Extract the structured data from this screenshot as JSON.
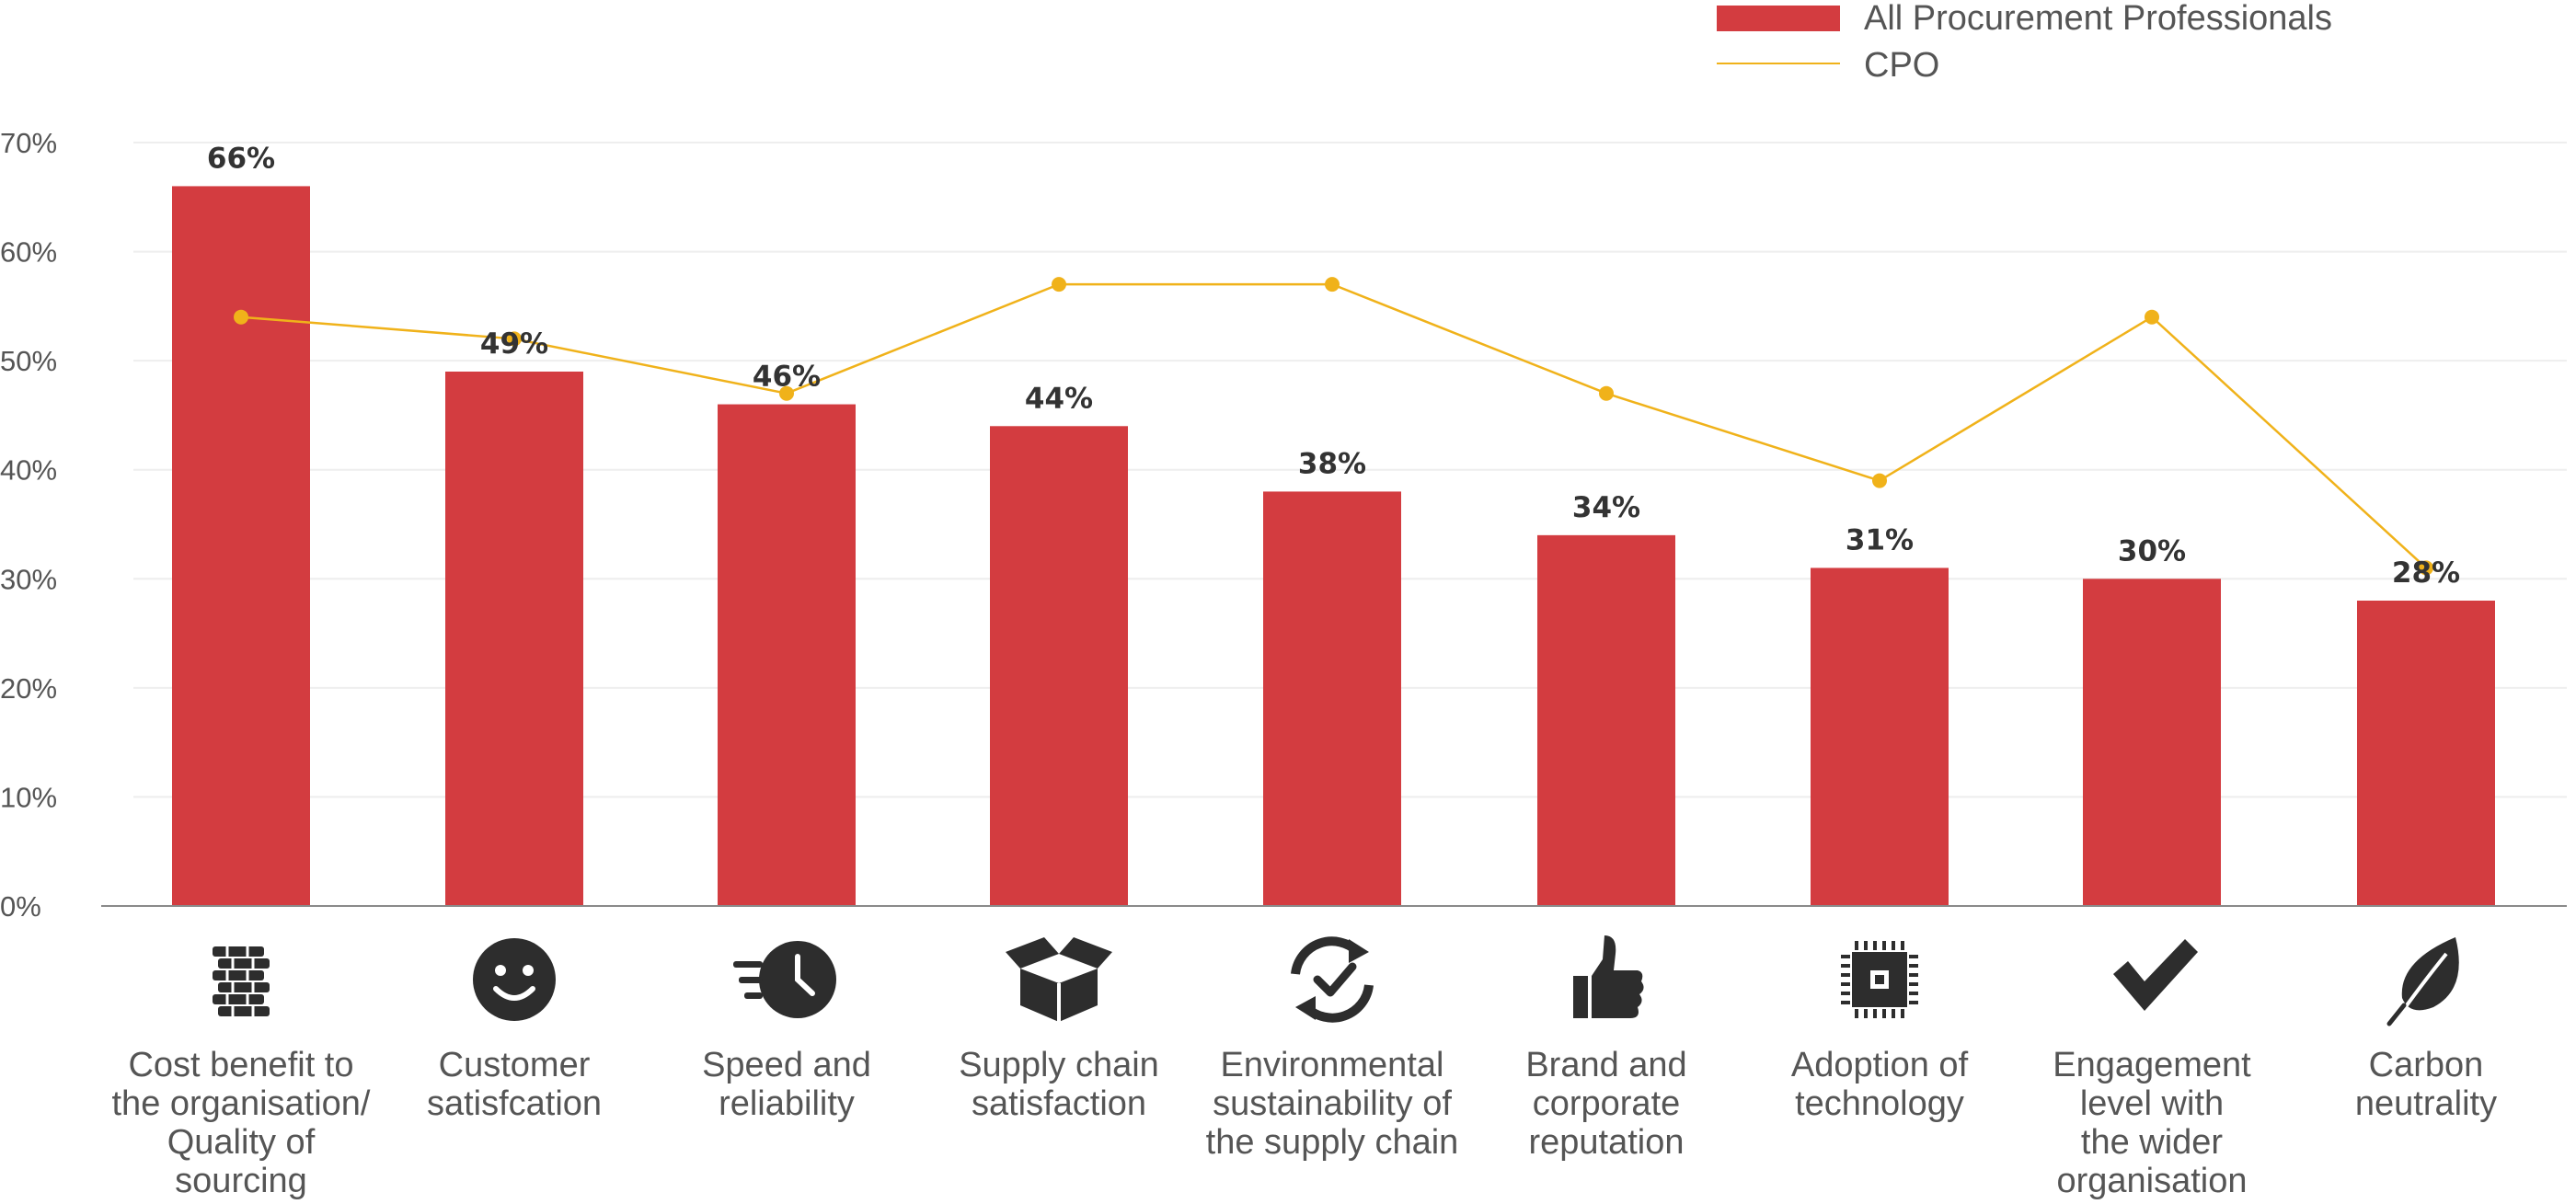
{
  "chart_data": {
    "type": "bar",
    "title": "",
    "xlabel": "",
    "ylabel": "",
    "ylim": [
      0,
      70
    ],
    "yticks": [
      "0%",
      "10%",
      "20%",
      "30%",
      "40%",
      "50%",
      "60%",
      "70%"
    ],
    "grid": true,
    "legend_position": "top-right",
    "categories": [
      [
        "Cost benefit to",
        "the organisation/",
        "Quality of",
        "sourcing"
      ],
      [
        "Customer",
        "satisfcation"
      ],
      [
        "Speed and",
        "reliability"
      ],
      [
        "Supply chain",
        "satisfaction"
      ],
      [
        "Environmental",
        "sustainability of",
        "the supply chain"
      ],
      [
        "Brand and",
        "corporate",
        "reputation"
      ],
      [
        "Adoption of",
        "technology"
      ],
      [
        "Engagement",
        "level with",
        "the wider",
        "organisation"
      ],
      [
        "Carbon",
        "neutrality"
      ]
    ],
    "icons": [
      "coins-stack-icon",
      "smiley-face-icon",
      "fast-clock-icon",
      "open-box-icon",
      "recycle-check-icon",
      "thumbs-up-icon",
      "microchip-icon",
      "checkmark-icon",
      "leaf-icon"
    ],
    "series": [
      {
        "name": "All Procurement Professionals",
        "type": "bar",
        "color": "#d33c40",
        "values": [
          66,
          49,
          46,
          44,
          38,
          34,
          31,
          30,
          28
        ],
        "labels": [
          "66%",
          "49%",
          "46%",
          "44%",
          "38%",
          "34%",
          "31%",
          "30%",
          "28%"
        ]
      },
      {
        "name": "CPO",
        "type": "line",
        "color": "#f0b21a",
        "values": [
          54,
          52,
          47,
          57,
          57,
          47,
          39,
          54,
          31
        ]
      }
    ]
  }
}
